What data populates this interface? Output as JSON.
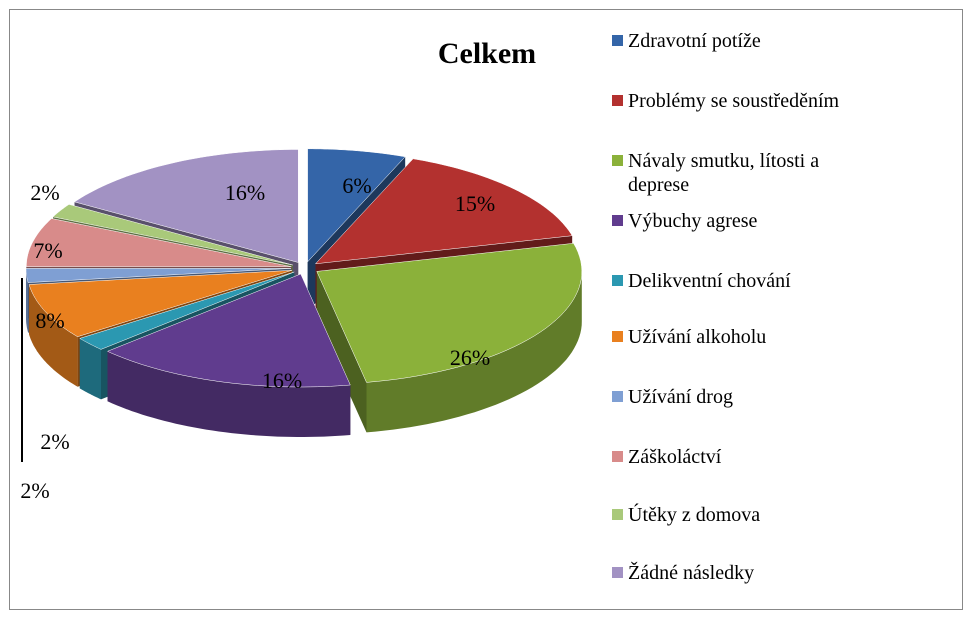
{
  "chart_data": {
    "type": "pie",
    "title": "Celkem",
    "categories": [
      "Zdravotní potíže",
      "Problémy se soustředěním",
      "Návaly smutku, lítosti a deprese",
      "Výbuchy agrese",
      "Delikventní chování",
      "Užívání alkoholu",
      "Užívání drog",
      "Záškoláctví",
      "Útěky z domova",
      "Žádné následky"
    ],
    "values": [
      6,
      15,
      26,
      16,
      2,
      8,
      2,
      7,
      2,
      16
    ],
    "value_labels": [
      "6%",
      "15%",
      "26%",
      "16%",
      "2%",
      "8%",
      "2%",
      "7%",
      "2%",
      "16%"
    ],
    "colors": [
      "#3465a8",
      "#b3312f",
      "#8bb13a",
      "#603c8e",
      "#2b98b1",
      "#e9801f",
      "#7f9fd3",
      "#d88b8a",
      "#a9c97a",
      "#a292c3"
    ],
    "legend": "right"
  }
}
